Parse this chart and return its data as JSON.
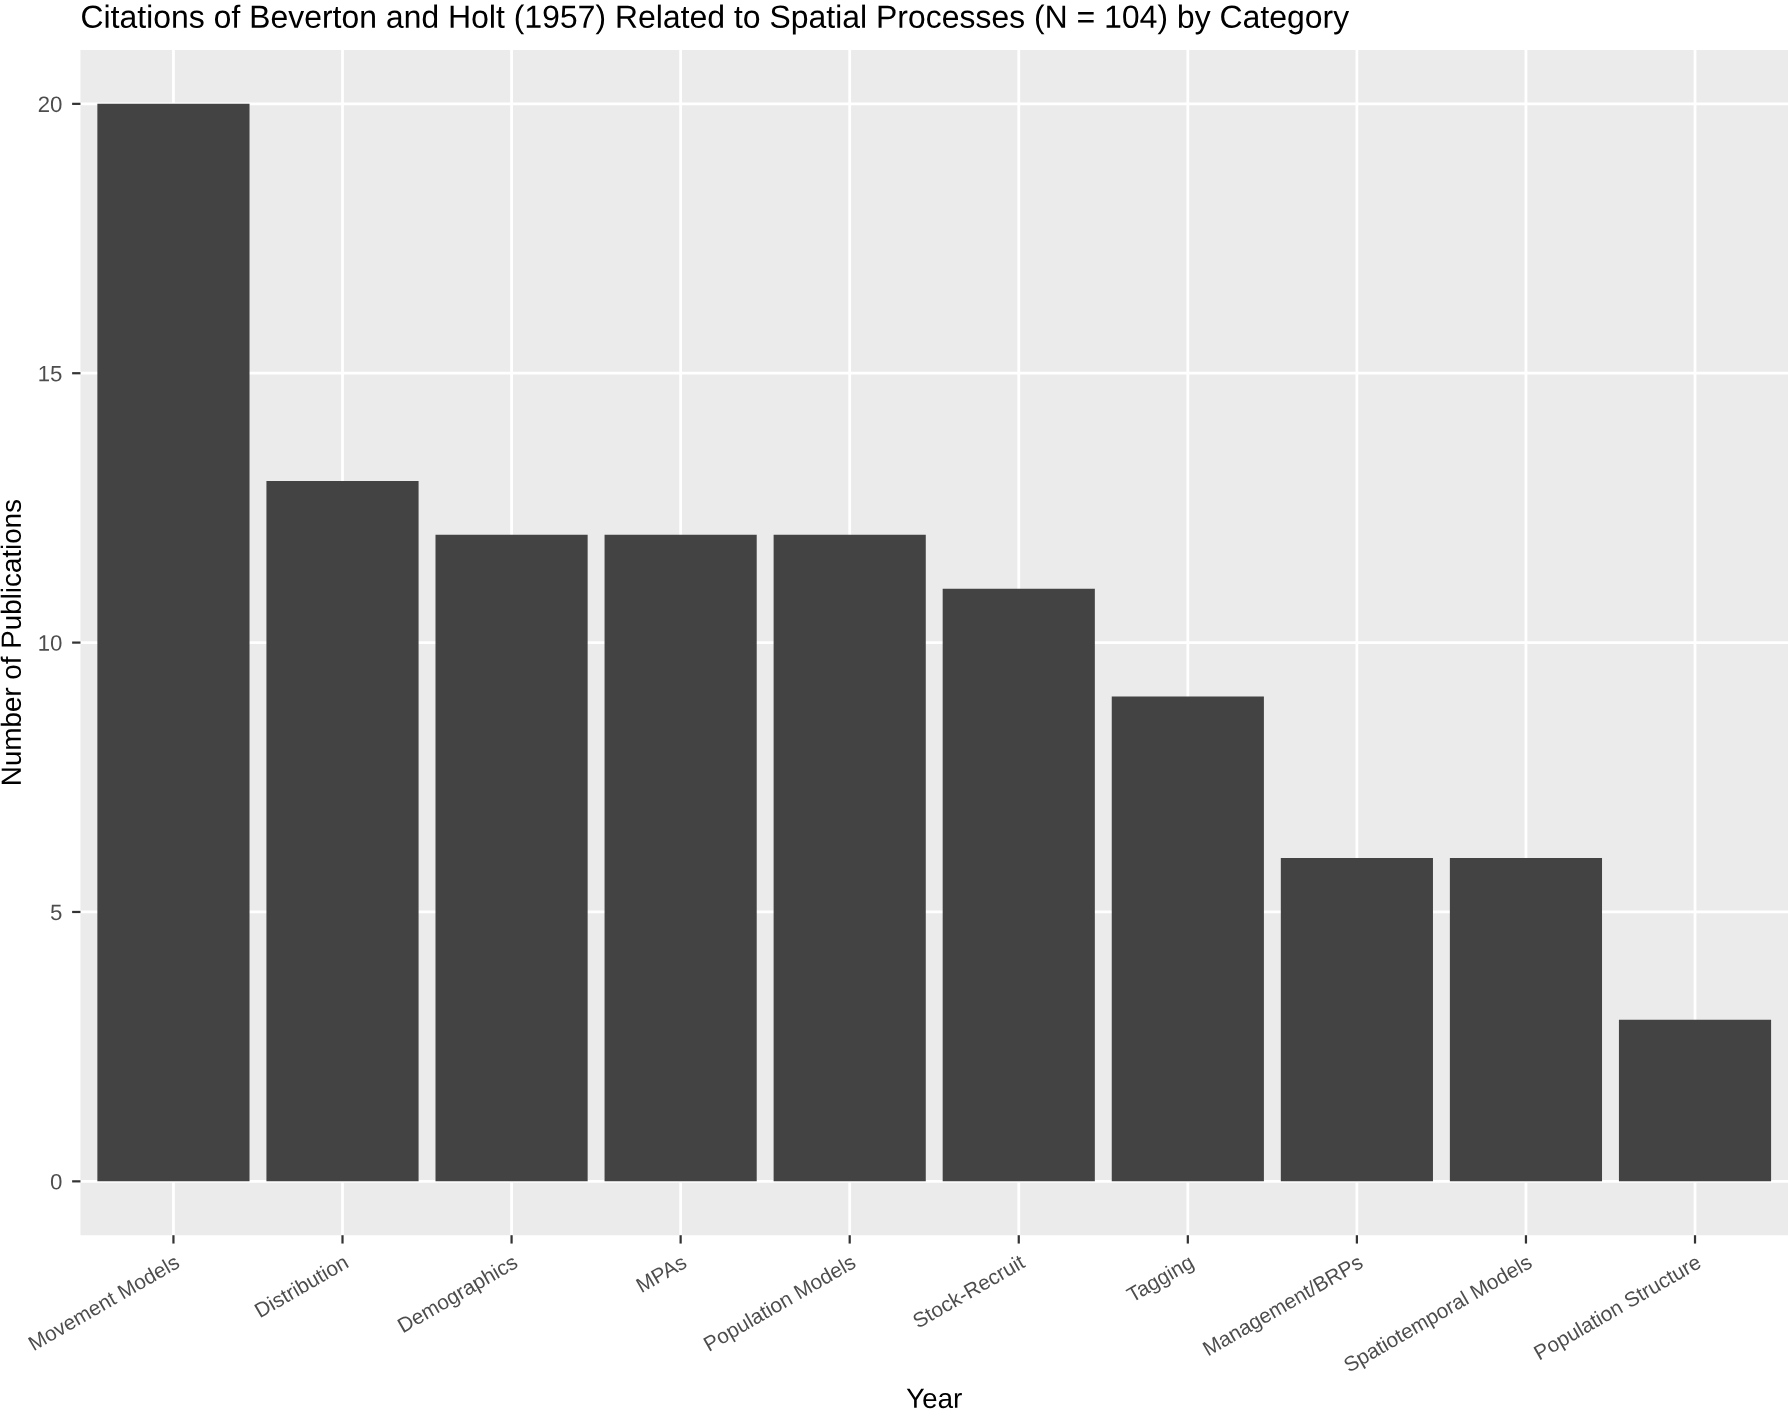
{
  "chart_data": {
    "type": "bar",
    "title": "Citations of Beverton and Holt (1957) Related to Spatial Processes (N = 104) by Category",
    "xlabel": "Year",
    "ylabel": "Number of Publications",
    "categories": [
      "Movement Models",
      "Distribution",
      "Demographics",
      "MPAs",
      "Population Models",
      "Stock-Recruit",
      "Tagging",
      "Management/BRPs",
      "Spatiotemporal Models",
      "Population Structure"
    ],
    "values": [
      20,
      13,
      12,
      12,
      12,
      11,
      9,
      6,
      6,
      3
    ],
    "color": "#434343",
    "ylim": [
      -1,
      21
    ],
    "yticks": [
      0,
      5,
      10,
      15,
      20
    ],
    "grid": true
  }
}
